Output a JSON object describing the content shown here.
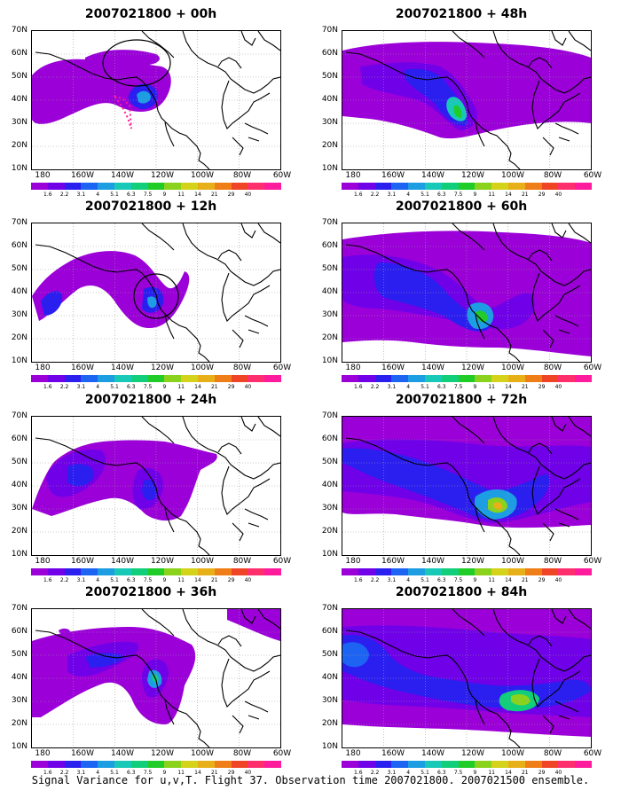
{
  "caption": "Signal Variance for u,v,T. Flight 37. Observation time 2007021800. 2007021500 ensemble.",
  "lat_labels": [
    "70N",
    "60N",
    "50N",
    "40N",
    "30N",
    "20N",
    "10N"
  ],
  "lon_labels": [
    "180",
    "160W",
    "140W",
    "120W",
    "100W",
    "80W",
    "60W"
  ],
  "colorbar": {
    "colors": [
      "#9b00d8",
      "#6f00e8",
      "#2b1ff0",
      "#1d64f2",
      "#1d9ee3",
      "#19c9b8",
      "#10ce7a",
      "#20cc28",
      "#8ad21c",
      "#d4d31a",
      "#e8b018",
      "#ef7e18",
      "#ef4426",
      "#ff2f6e",
      "#ff1c9c"
    ],
    "labels": [
      "1.6",
      "2.2",
      "3.1",
      "4",
      "5.1",
      "6.3",
      "7.5",
      "9",
      "11",
      "14",
      "21",
      "29",
      "40"
    ]
  },
  "panels": [
    {
      "title": "2007021800 + 00h"
    },
    {
      "title": "2007021800 + 48h"
    },
    {
      "title": "2007021800 + 12h"
    },
    {
      "title": "2007021800 + 60h"
    },
    {
      "title": "2007021800 + 24h"
    },
    {
      "title": "2007021800 + 72h"
    },
    {
      "title": "2007021800 + 36h"
    },
    {
      "title": "2007021800 + 84h"
    }
  ]
}
